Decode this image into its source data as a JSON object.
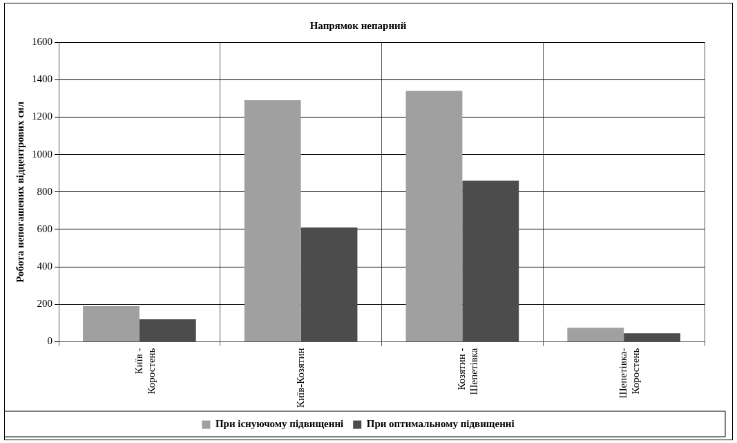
{
  "chart_data": {
    "type": "bar",
    "title": "Напрямок непарний",
    "ylabel": "Робота непогашених відцентрових сил",
    "categories": [
      "Київ - Коростень",
      "Київ-Козятин",
      "Козятин - Шепетівка",
      "Шепетівка-Коростень"
    ],
    "series": [
      {
        "name": "При існуючому підвищенні",
        "color": "#a0a0a0",
        "values": [
          190,
          1290,
          1340,
          75
        ]
      },
      {
        "name": "При оптимальному підвищенні",
        "color": "#4c4c4c",
        "values": [
          120,
          610,
          860,
          45
        ]
      }
    ],
    "ylim": [
      0,
      1600
    ],
    "yticks": [
      0,
      200,
      400,
      600,
      800,
      1000,
      1200,
      1400,
      1600
    ],
    "grid": true,
    "legend": "bottom"
  }
}
